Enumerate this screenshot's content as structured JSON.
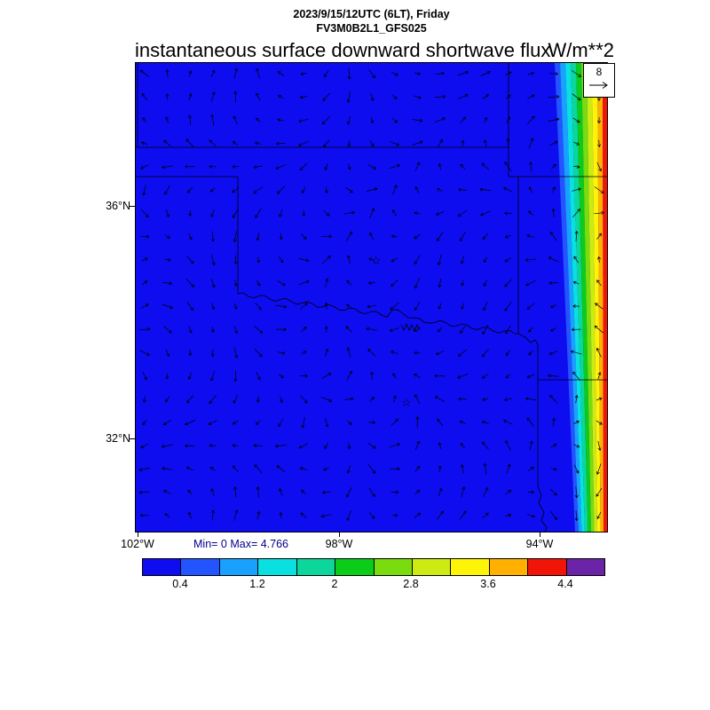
{
  "header": {
    "datetime": "2023/9/15/12UTC (6LT), Friday",
    "model": "FV3M0B2L1_GFS025"
  },
  "plot": {
    "title": "instantaneous surface downward shortwave flux",
    "units": "W/m**2",
    "stats": "Min= 0 Max= 4.766",
    "reference_vector_label": "8"
  },
  "axes": {
    "lat": [
      "36°N",
      "32°N"
    ],
    "lon": [
      "102°W",
      "98°W",
      "94°W"
    ]
  },
  "colorbar": {
    "tick_labels": [
      "0.4",
      "1.2",
      "2",
      "2.8",
      "3.6",
      "4.4"
    ],
    "colors": [
      "#0d0df0",
      "#2255ff",
      "#19a1ff",
      "#0ae0e0",
      "#0cd69c",
      "#0ccc1a",
      "#7adb0e",
      "#cdea12",
      "#fef407",
      "#ffb000",
      "#f01506",
      "#6b24a8"
    ]
  },
  "chart_data": {
    "type": "heatmap",
    "title": "instantaneous surface downward shortwave flux",
    "units": "W/m**2",
    "datetime": "2023/9/15/12UTC (6LT), Friday",
    "model_run": "FV3M0B2L1_GFS025",
    "stats": {
      "min": 0,
      "max": 4.766
    },
    "colorbar_levels": [
      0.4,
      0.8,
      1.2,
      1.6,
      2.0,
      2.4,
      2.8,
      3.2,
      3.6,
      4.0,
      4.4
    ],
    "colorbar_tick_labels": [
      "0.4",
      "1.2",
      "2",
      "2.8",
      "3.6",
      "4.4"
    ],
    "colorbar_colors": [
      "#0d0df0",
      "#2255ff",
      "#19a1ff",
      "#0ae0e0",
      "#0cd69c",
      "#0ccc1a",
      "#7adb0e",
      "#cdea12",
      "#fef407",
      "#ffb000",
      "#f01506",
      "#6b24a8"
    ],
    "x_axis": {
      "tick_labels": [
        "102°W",
        "98°W",
        "94°W"
      ],
      "approx_range_deg_west": [
        102.1,
        92.7
      ]
    },
    "y_axis": {
      "tick_labels": [
        "36°N",
        "32°N"
      ],
      "approx_range_deg_north": [
        30.4,
        38.5
      ]
    },
    "wind_reference_vector": 8,
    "field_summary": "Flux is 0 (solid blue) over nearly the entire Oklahoma/Texas domain; a diagonal sunrise-terminator gradient of increasing flux (cyan through green, yellow, orange to red, max 4.766) hugs the eastern map edge",
    "overlays": [
      "grid of wind vector arrows",
      "US state borders incl. Red River boundary",
      "two star city markers"
    ]
  }
}
